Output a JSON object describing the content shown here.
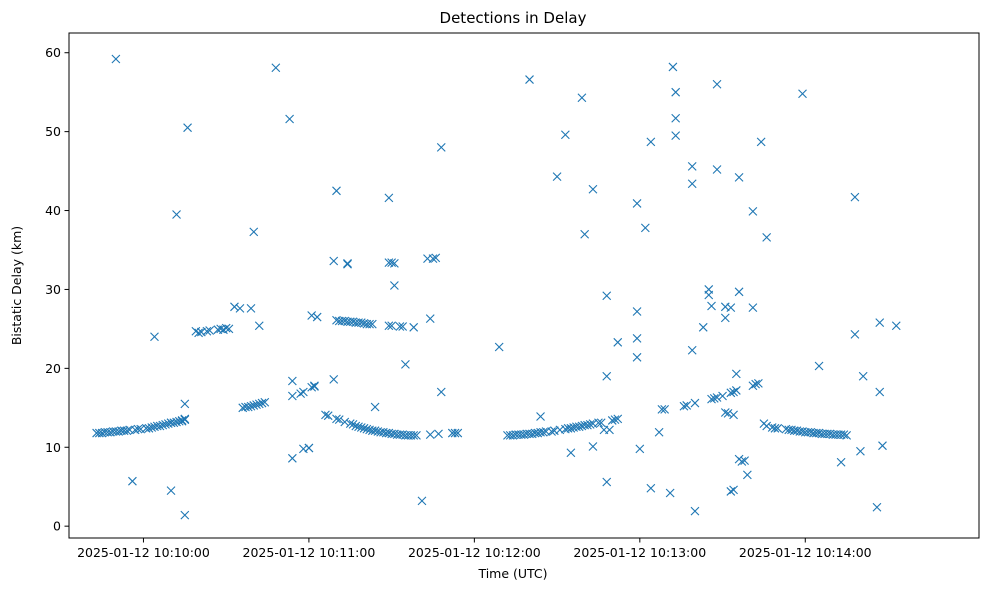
{
  "chart_data": {
    "type": "scatter",
    "title": "Detections in Delay",
    "xlabel": "Time (UTC)",
    "ylabel": "Bistatic Delay (km)",
    "marker": "x",
    "color": "#1f77b4",
    "grid": false,
    "xlim": [
      "2025-01-12 10:09:33",
      "2025-01-12 10:15:03"
    ],
    "ylim": [
      -1.5,
      62.5
    ],
    "xticks": [
      "2025-01-12 10:10:00",
      "2025-01-12 10:11:00",
      "2025-01-12 10:12:00",
      "2025-01-12 10:13:00",
      "2025-01-12 10:14:00"
    ],
    "yticks": [
      0,
      10,
      20,
      30,
      40,
      50,
      60
    ],
    "points": [
      [
        "2025-01-12 10:09:43",
        11.8
      ],
      [
        "2025-01-12 10:09:44",
        11.8
      ],
      [
        "2025-01-12 10:09:45",
        11.8
      ],
      [
        "2025-01-12 10:09:46",
        11.9
      ],
      [
        "2025-01-12 10:09:47",
        11.9
      ],
      [
        "2025-01-12 10:09:48",
        11.9
      ],
      [
        "2025-01-12 10:09:49",
        12.0
      ],
      [
        "2025-01-12 10:09:50",
        12.0
      ],
      [
        "2025-01-12 10:09:51",
        12.0
      ],
      [
        "2025-01-12 10:09:52",
        12.1
      ],
      [
        "2025-01-12 10:09:53",
        12.1
      ],
      [
        "2025-01-12 10:09:54",
        12.1
      ],
      [
        "2025-01-12 10:09:55",
        12.2
      ],
      [
        "2025-01-12 10:09:57",
        12.2
      ],
      [
        "2025-01-12 10:09:58",
        12.3
      ],
      [
        "2025-01-12 10:09:59",
        12.3
      ],
      [
        "2025-01-12 10:10:01",
        12.4
      ],
      [
        "2025-01-12 10:10:02",
        12.4
      ],
      [
        "2025-01-12 10:10:03",
        12.5
      ],
      [
        "2025-01-12 10:10:04",
        12.6
      ],
      [
        "2025-01-12 10:10:05",
        12.7
      ],
      [
        "2025-01-12 10:10:06",
        12.7
      ],
      [
        "2025-01-12 10:10:07",
        12.8
      ],
      [
        "2025-01-12 10:10:08",
        12.9
      ],
      [
        "2025-01-12 10:10:09",
        13.0
      ],
      [
        "2025-01-12 10:10:10",
        13.1
      ],
      [
        "2025-01-12 10:10:11",
        13.1
      ],
      [
        "2025-01-12 10:10:13",
        13.3
      ],
      [
        "2025-01-12 10:10:14",
        13.4
      ],
      [
        "2025-01-12 10:10:15",
        13.5
      ],
      [
        "2025-01-12 10:09:50",
        59.2
      ],
      [
        "2025-01-12 10:09:56",
        5.7
      ],
      [
        "2025-01-12 10:10:04",
        24.0
      ],
      [
        "2025-01-12 10:10:10",
        4.5
      ],
      [
        "2025-01-12 10:10:12",
        39.5
      ],
      [
        "2025-01-12 10:10:15",
        15.5
      ],
      [
        "2025-01-12 10:10:15",
        1.4
      ],
      [
        "2025-01-12 10:10:16",
        50.5
      ],
      [
        "2025-01-12 10:10:10",
        13.1
      ],
      [
        "2025-01-12 10:10:12",
        13.2
      ],
      [
        "2025-01-12 10:10:14",
        13.3
      ],
      [
        "2025-01-12 10:10:15",
        13.5
      ],
      [
        "2025-01-12 10:10:15",
        13.6
      ],
      [
        "2025-01-12 10:10:19",
        24.7
      ],
      [
        "2025-01-12 10:10:20",
        24.5
      ],
      [
        "2025-01-12 10:10:21",
        24.6
      ],
      [
        "2025-01-12 10:10:23",
        24.7
      ],
      [
        "2025-01-12 10:10:24",
        24.8
      ],
      [
        "2025-01-12 10:10:27",
        24.9
      ],
      [
        "2025-01-12 10:10:28",
        25.0
      ],
      [
        "2025-01-12 10:10:29",
        24.9
      ],
      [
        "2025-01-12 10:10:30",
        25.1
      ],
      [
        "2025-01-12 10:10:31",
        25.0
      ],
      [
        "2025-01-12 10:10:33",
        27.8
      ],
      [
        "2025-01-12 10:10:35",
        27.6
      ],
      [
        "2025-01-12 10:10:39",
        27.6
      ],
      [
        "2025-01-12 10:10:40",
        37.3
      ],
      [
        "2025-01-12 10:10:42",
        25.4
      ],
      [
        "2025-01-12 10:10:36",
        15.0
      ],
      [
        "2025-01-12 10:10:37",
        15.1
      ],
      [
        "2025-01-12 10:10:38",
        15.1
      ],
      [
        "2025-01-12 10:10:39",
        15.2
      ],
      [
        "2025-01-12 10:10:40",
        15.3
      ],
      [
        "2025-01-12 10:10:41",
        15.4
      ],
      [
        "2025-01-12 10:10:42",
        15.5
      ],
      [
        "2025-01-12 10:10:43",
        15.6
      ],
      [
        "2025-01-12 10:10:44",
        15.7
      ],
      [
        "2025-01-12 10:10:48",
        58.1
      ],
      [
        "2025-01-12 10:10:53",
        51.6
      ],
      [
        "2025-01-12 10:10:54",
        18.4
      ],
      [
        "2025-01-12 10:10:54",
        16.5
      ],
      [
        "2025-01-12 10:10:54",
        8.6
      ],
      [
        "2025-01-12 10:10:57",
        16.8
      ],
      [
        "2025-01-12 10:10:58",
        17.0
      ],
      [
        "2025-01-12 10:10:58",
        9.8
      ],
      [
        "2025-01-12 10:11:00",
        9.9
      ],
      [
        "2025-01-12 10:11:00",
        9.9
      ],
      [
        "2025-01-12 10:11:01",
        17.6
      ],
      [
        "2025-01-12 10:11:02",
        17.8
      ],
      [
        "2025-01-12 10:11:02",
        17.7
      ],
      [
        "2025-01-12 10:11:01",
        26.7
      ],
      [
        "2025-01-12 10:11:03",
        26.5
      ],
      [
        "2025-01-12 10:11:06",
        14.1
      ],
      [
        "2025-01-12 10:11:07",
        14.0
      ],
      [
        "2025-01-12 10:11:09",
        18.6
      ],
      [
        "2025-01-12 10:11:09",
        33.6
      ],
      [
        "2025-01-12 10:11:10",
        42.5
      ],
      [
        "2025-01-12 10:11:10",
        13.6
      ],
      [
        "2025-01-12 10:11:11",
        13.5
      ],
      [
        "2025-01-12 10:11:13",
        13.2
      ],
      [
        "2025-01-12 10:11:15",
        13.0
      ],
      [
        "2025-01-12 10:11:16",
        12.9
      ],
      [
        "2025-01-12 10:11:17",
        12.7
      ],
      [
        "2025-01-12 10:11:18",
        12.6
      ],
      [
        "2025-01-12 10:11:19",
        12.5
      ],
      [
        "2025-01-12 10:11:20",
        12.4
      ],
      [
        "2025-01-12 10:11:21",
        12.3
      ],
      [
        "2025-01-12 10:11:22",
        12.2
      ],
      [
        "2025-01-12 10:11:23",
        12.1
      ],
      [
        "2025-01-12 10:11:24",
        12.1
      ],
      [
        "2025-01-12 10:11:25",
        12.0
      ],
      [
        "2025-01-12 10:11:26",
        11.9
      ],
      [
        "2025-01-12 10:11:27",
        11.9
      ],
      [
        "2025-01-12 10:11:28",
        11.8
      ],
      [
        "2025-01-12 10:11:29",
        11.8
      ],
      [
        "2025-01-12 10:11:30",
        11.7
      ],
      [
        "2025-01-12 10:11:31",
        11.7
      ],
      [
        "2025-01-12 10:11:32",
        11.6
      ],
      [
        "2025-01-12 10:11:33",
        11.6
      ],
      [
        "2025-01-12 10:11:34",
        11.6
      ],
      [
        "2025-01-12 10:11:35",
        11.5
      ],
      [
        "2025-01-12 10:11:36",
        11.5
      ],
      [
        "2025-01-12 10:11:37",
        11.5
      ],
      [
        "2025-01-12 10:11:38",
        11.5
      ],
      [
        "2025-01-12 10:11:39",
        11.5
      ],
      [
        "2025-01-12 10:11:10",
        26.1
      ],
      [
        "2025-01-12 10:11:11",
        26.0
      ],
      [
        "2025-01-12 10:11:12",
        26.0
      ],
      [
        "2025-01-12 10:11:13",
        26.0
      ],
      [
        "2025-01-12 10:11:14",
        25.9
      ],
      [
        "2025-01-12 10:11:15",
        25.9
      ],
      [
        "2025-01-12 10:11:16",
        25.9
      ],
      [
        "2025-01-12 10:11:17",
        25.8
      ],
      [
        "2025-01-12 10:11:18",
        25.8
      ],
      [
        "2025-01-12 10:11:19",
        25.8
      ],
      [
        "2025-01-12 10:11:20",
        25.7
      ],
      [
        "2025-01-12 10:11:21",
        25.6
      ],
      [
        "2025-01-12 10:11:22",
        25.6
      ],
      [
        "2025-01-12 10:11:23",
        25.6
      ],
      [
        "2025-01-12 10:11:14",
        33.2
      ],
      [
        "2025-01-12 10:11:14",
        33.3
      ],
      [
        "2025-01-12 10:11:24",
        15.1
      ],
      [
        "2025-01-12 10:11:29",
        25.4
      ],
      [
        "2025-01-12 10:11:30",
        25.4
      ],
      [
        "2025-01-12 10:11:33",
        25.3
      ],
      [
        "2025-01-12 10:11:34",
        25.3
      ],
      [
        "2025-01-12 10:11:38",
        25.2
      ],
      [
        "2025-01-12 10:11:29",
        41.6
      ],
      [
        "2025-01-12 10:11:29",
        33.4
      ],
      [
        "2025-01-12 10:11:30",
        33.4
      ],
      [
        "2025-01-12 10:11:31",
        33.3
      ],
      [
        "2025-01-12 10:11:31",
        30.5
      ],
      [
        "2025-01-12 10:11:35",
        20.5
      ],
      [
        "2025-01-12 10:11:41",
        3.2
      ],
      [
        "2025-01-12 10:11:43",
        33.9
      ],
      [
        "2025-01-12 10:11:44",
        26.3
      ],
      [
        "2025-01-12 10:11:45",
        33.9
      ],
      [
        "2025-01-12 10:11:46",
        34.0
      ],
      [
        "2025-01-12 10:11:44",
        11.6
      ],
      [
        "2025-01-12 10:11:47",
        11.7
      ],
      [
        "2025-01-12 10:11:48",
        48.0
      ],
      [
        "2025-01-12 10:11:48",
        17.0
      ],
      [
        "2025-01-12 10:11:52",
        11.8
      ],
      [
        "2025-01-12 10:11:53",
        11.8
      ],
      [
        "2025-01-12 10:11:54",
        11.8
      ],
      [
        "2025-01-12 10:12:09",
        22.7
      ],
      [
        "2025-01-12 10:12:12",
        11.5
      ],
      [
        "2025-01-12 10:12:13",
        11.5
      ],
      [
        "2025-01-12 10:12:14",
        11.5
      ],
      [
        "2025-01-12 10:12:15",
        11.6
      ],
      [
        "2025-01-12 10:12:16",
        11.6
      ],
      [
        "2025-01-12 10:12:17",
        11.6
      ],
      [
        "2025-01-12 10:12:18",
        11.6
      ],
      [
        "2025-01-12 10:12:19",
        11.7
      ],
      [
        "2025-01-12 10:12:20",
        11.7
      ],
      [
        "2025-01-12 10:12:21",
        11.7
      ],
      [
        "2025-01-12 10:12:22",
        11.8
      ],
      [
        "2025-01-12 10:12:23",
        11.8
      ],
      [
        "2025-01-12 10:12:24",
        11.9
      ],
      [
        "2025-01-12 10:12:25",
        11.9
      ],
      [
        "2025-01-12 10:12:26",
        12.0
      ],
      [
        "2025-01-12 10:12:28",
        12.0
      ],
      [
        "2025-01-12 10:12:29",
        12.1
      ],
      [
        "2025-01-12 10:12:31",
        12.2
      ],
      [
        "2025-01-12 10:12:33",
        12.3
      ],
      [
        "2025-01-12 10:12:34",
        12.4
      ],
      [
        "2025-01-12 10:12:35",
        12.4
      ],
      [
        "2025-01-12 10:12:36",
        12.5
      ],
      [
        "2025-01-12 10:12:37",
        12.6
      ],
      [
        "2025-01-12 10:12:38",
        12.6
      ],
      [
        "2025-01-12 10:12:39",
        12.7
      ],
      [
        "2025-01-12 10:12:40",
        12.8
      ],
      [
        "2025-01-12 10:12:41",
        12.8
      ],
      [
        "2025-01-12 10:12:42",
        12.9
      ],
      [
        "2025-01-12 10:12:43",
        13.0
      ],
      [
        "2025-01-12 10:12:45",
        13.1
      ],
      [
        "2025-01-12 10:12:46",
        13.1
      ],
      [
        "2025-01-12 10:12:47",
        12.2
      ],
      [
        "2025-01-12 10:12:49",
        12.2
      ],
      [
        "2025-01-12 10:12:50",
        13.4
      ],
      [
        "2025-01-12 10:12:51",
        13.5
      ],
      [
        "2025-01-12 10:12:52",
        13.6
      ],
      [
        "2025-01-12 10:12:20",
        56.6
      ],
      [
        "2025-01-12 10:12:24",
        13.9
      ],
      [
        "2025-01-12 10:12:30",
        44.3
      ],
      [
        "2025-01-12 10:12:33",
        49.6
      ],
      [
        "2025-01-12 10:12:35",
        9.3
      ],
      [
        "2025-01-12 10:12:39",
        54.3
      ],
      [
        "2025-01-12 10:12:40",
        37.0
      ],
      [
        "2025-01-12 10:12:43",
        42.7
      ],
      [
        "2025-01-12 10:12:43",
        10.1
      ],
      [
        "2025-01-12 10:12:48",
        19.0
      ],
      [
        "2025-01-12 10:12:48",
        29.2
      ],
      [
        "2025-01-12 10:12:48",
        5.6
      ],
      [
        "2025-01-12 10:12:52",
        23.3
      ],
      [
        "2025-01-12 10:12:59",
        40.9
      ],
      [
        "2025-01-12 10:12:59",
        27.2
      ],
      [
        "2025-01-12 10:12:59",
        23.8
      ],
      [
        "2025-01-12 10:12:59",
        21.4
      ],
      [
        "2025-01-12 10:13:00",
        9.8
      ],
      [
        "2025-01-12 10:13:02",
        37.8
      ],
      [
        "2025-01-12 10:13:04",
        48.7
      ],
      [
        "2025-01-12 10:13:04",
        4.8
      ],
      [
        "2025-01-12 10:13:07",
        11.9
      ],
      [
        "2025-01-12 10:13:08",
        14.8
      ],
      [
        "2025-01-12 10:13:09",
        14.8
      ],
      [
        "2025-01-12 10:13:11",
        4.2
      ],
      [
        "2025-01-12 10:13:12",
        58.2
      ],
      [
        "2025-01-12 10:13:13",
        55.0
      ],
      [
        "2025-01-12 10:13:13",
        51.7
      ],
      [
        "2025-01-12 10:13:13",
        49.5
      ],
      [
        "2025-01-12 10:13:16",
        15.2
      ],
      [
        "2025-01-12 10:13:17",
        15.3
      ],
      [
        "2025-01-12 10:13:19",
        45.6
      ],
      [
        "2025-01-12 10:13:19",
        43.4
      ],
      [
        "2025-01-12 10:13:19",
        22.3
      ],
      [
        "2025-01-12 10:13:20",
        1.9
      ],
      [
        "2025-01-12 10:13:20",
        15.6
      ],
      [
        "2025-01-12 10:13:23",
        25.2
      ],
      [
        "2025-01-12 10:13:25",
        30.0
      ],
      [
        "2025-01-12 10:13:25",
        29.3
      ],
      [
        "2025-01-12 10:13:26",
        27.9
      ],
      [
        "2025-01-12 10:13:26",
        16.1
      ],
      [
        "2025-01-12 10:13:27",
        16.2
      ],
      [
        "2025-01-12 10:13:28",
        56.0
      ],
      [
        "2025-01-12 10:13:28",
        45.2
      ],
      [
        "2025-01-12 10:13:28",
        16.3
      ],
      [
        "2025-01-12 10:13:30",
        16.5
      ],
      [
        "2025-01-12 10:13:31",
        26.4
      ],
      [
        "2025-01-12 10:13:31",
        27.8
      ],
      [
        "2025-01-12 10:13:31",
        14.4
      ],
      [
        "2025-01-12 10:13:32",
        14.3
      ],
      [
        "2025-01-12 10:13:33",
        16.9
      ],
      [
        "2025-01-12 10:13:34",
        17.0
      ],
      [
        "2025-01-12 10:13:33",
        27.7
      ],
      [
        "2025-01-12 10:13:33",
        4.4
      ],
      [
        "2025-01-12 10:13:34",
        4.6
      ],
      [
        "2025-01-12 10:13:34",
        14.1
      ],
      [
        "2025-01-12 10:13:35",
        19.3
      ],
      [
        "2025-01-12 10:13:35",
        17.2
      ],
      [
        "2025-01-12 10:13:36",
        29.7
      ],
      [
        "2025-01-12 10:13:36",
        44.2
      ],
      [
        "2025-01-12 10:13:36",
        8.5
      ],
      [
        "2025-01-12 10:13:37",
        8.2
      ],
      [
        "2025-01-12 10:13:38",
        8.3
      ],
      [
        "2025-01-12 10:13:39",
        6.5
      ],
      [
        "2025-01-12 10:13:41",
        39.9
      ],
      [
        "2025-01-12 10:13:41",
        27.7
      ],
      [
        "2025-01-12 10:13:41",
        17.8
      ],
      [
        "2025-01-12 10:13:42",
        18.0
      ],
      [
        "2025-01-12 10:13:43",
        18.1
      ],
      [
        "2025-01-12 10:13:44",
        48.7
      ],
      [
        "2025-01-12 10:13:45",
        13.0
      ],
      [
        "2025-01-12 10:13:46",
        36.6
      ],
      [
        "2025-01-12 10:13:46",
        12.7
      ],
      [
        "2025-01-12 10:13:48",
        12.5
      ],
      [
        "2025-01-12 10:13:49",
        12.4
      ],
      [
        "2025-01-12 10:13:50",
        12.4
      ],
      [
        "2025-01-12 10:13:59",
        54.8
      ],
      [
        "2025-01-12 10:13:53",
        12.3
      ],
      [
        "2025-01-12 10:13:54",
        12.2
      ],
      [
        "2025-01-12 10:13:55",
        12.2
      ],
      [
        "2025-01-12 10:13:56",
        12.1
      ],
      [
        "2025-01-12 10:13:57",
        12.1
      ],
      [
        "2025-01-12 10:13:58",
        12.0
      ],
      [
        "2025-01-12 10:13:59",
        12.0
      ],
      [
        "2025-01-12 10:14:00",
        11.9
      ],
      [
        "2025-01-12 10:14:01",
        11.9
      ],
      [
        "2025-01-12 10:14:02",
        11.9
      ],
      [
        "2025-01-12 10:14:03",
        11.8
      ],
      [
        "2025-01-12 10:14:04",
        11.8
      ],
      [
        "2025-01-12 10:14:05",
        11.8
      ],
      [
        "2025-01-12 10:14:06",
        11.7
      ],
      [
        "2025-01-12 10:14:07",
        11.7
      ],
      [
        "2025-01-12 10:14:08",
        11.7
      ],
      [
        "2025-01-12 10:14:09",
        11.7
      ],
      [
        "2025-01-12 10:14:10",
        11.6
      ],
      [
        "2025-01-12 10:14:11",
        11.6
      ],
      [
        "2025-01-12 10:14:12",
        11.6
      ],
      [
        "2025-01-12 10:14:13",
        11.6
      ],
      [
        "2025-01-12 10:14:14",
        11.6
      ],
      [
        "2025-01-12 10:14:15",
        11.5
      ],
      [
        "2025-01-12 10:14:05",
        20.3
      ],
      [
        "2025-01-12 10:14:13",
        8.1
      ],
      [
        "2025-01-12 10:14:18",
        24.3
      ],
      [
        "2025-01-12 10:14:18",
        41.7
      ],
      [
        "2025-01-12 10:14:20",
        9.5
      ],
      [
        "2025-01-12 10:14:21",
        19.0
      ],
      [
        "2025-01-12 10:14:26",
        2.4
      ],
      [
        "2025-01-12 10:14:27",
        25.8
      ],
      [
        "2025-01-12 10:14:27",
        17.0
      ],
      [
        "2025-01-12 10:14:28",
        10.2
      ],
      [
        "2025-01-12 10:14:33",
        25.4
      ]
    ]
  }
}
